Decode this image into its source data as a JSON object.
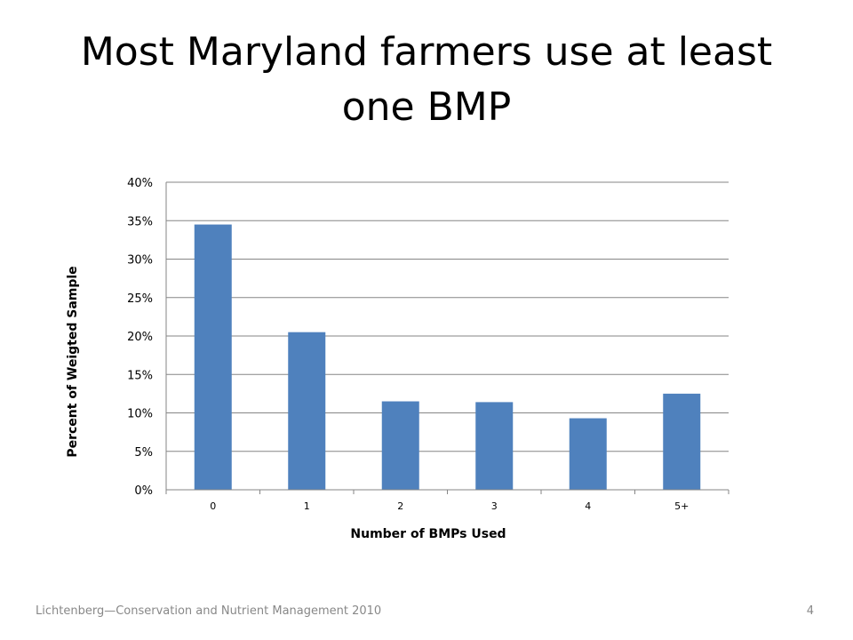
{
  "slide": {
    "title": "Most Maryland farmers use at least one BMP",
    "footer": "Lichtenberg—Conservation and Nutrient Management 2010",
    "page_number": "4"
  },
  "colors": {
    "bar": "#4f81bd",
    "grid": "#868686",
    "text": "#000000"
  },
  "chart_data": {
    "type": "bar",
    "categories": [
      "0",
      "1",
      "2",
      "3",
      "4",
      "5+"
    ],
    "values": [
      34.5,
      20.5,
      11.5,
      11.4,
      9.3,
      12.5
    ],
    "ylabel": "Percent of Weigted Sample",
    "xlabel": "Number of BMPs Used",
    "ylim": [
      0,
      40
    ],
    "yticks": [
      0,
      5,
      10,
      15,
      20,
      25,
      30,
      35,
      40
    ],
    "ytick_labels": [
      "0%",
      "5%",
      "10%",
      "15%",
      "20%",
      "25%",
      "30%",
      "35%",
      "40%"
    ],
    "grid": true,
    "legend": false
  }
}
